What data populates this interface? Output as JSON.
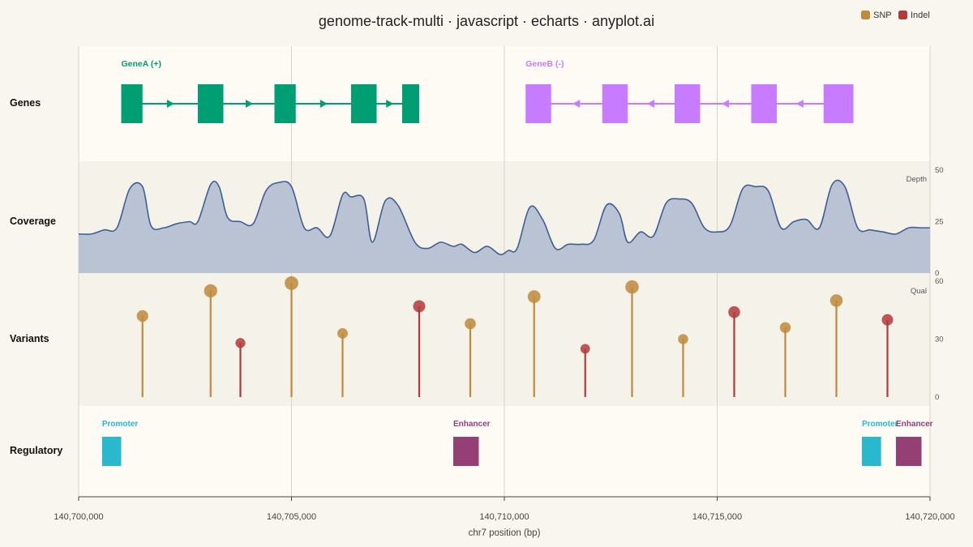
{
  "title": "genome-track-multi · javascript · echarts · anyplot.ai",
  "legend": [
    {
      "label": "SNP",
      "color": "#c08a3a"
    },
    {
      "label": "Indel",
      "color": "#b23a3a"
    }
  ],
  "tracks": [
    {
      "key": "genes",
      "label": "Genes"
    },
    {
      "key": "coverage",
      "label": "Coverage"
    },
    {
      "key": "variants",
      "label": "Variants"
    },
    {
      "key": "regulatory",
      "label": "Regulatory"
    }
  ],
  "chart_data": {
    "type": "genome-track",
    "x_axis": {
      "label": "chr7 position (bp)",
      "range": [
        140700000,
        140720000
      ],
      "ticks": [
        140700000,
        140705000,
        140710000,
        140715000,
        140720000
      ],
      "tick_labels": [
        "140,700,000",
        "140,705,000",
        "140,710,000",
        "140,715,000",
        "140,720,000"
      ]
    },
    "genes": [
      {
        "name": "GeneA (+)",
        "strand": "+",
        "color": "#009e73",
        "start": 140701000,
        "end": 140708000,
        "exons": [
          [
            140701000,
            140701500
          ],
          [
            140702800,
            140703400
          ],
          [
            140704600,
            140705100
          ],
          [
            140706400,
            140707000
          ],
          [
            140707600,
            140708000
          ]
        ]
      },
      {
        "name": "GeneB (-)",
        "strand": "-",
        "color": "#c77cff",
        "start": 140710500,
        "end": 140718200,
        "exons": [
          [
            140710500,
            140711100
          ],
          [
            140712300,
            140712900
          ],
          [
            140714000,
            140714600
          ],
          [
            140715800,
            140716400
          ],
          [
            140717500,
            140718200
          ]
        ]
      }
    ],
    "coverage": {
      "label": "Depth",
      "ylim": [
        0,
        50
      ],
      "ticks": [
        0,
        25,
        50
      ],
      "x": [
        140700000,
        140700300,
        140700600,
        140700900,
        140701200,
        140701500,
        140701700,
        140702000,
        140702300,
        140702600,
        140702800,
        140703100,
        140703300,
        140703500,
        140703800,
        140704100,
        140704400,
        140704700,
        140705000,
        140705300,
        140705600,
        140705900,
        140706200,
        140706400,
        140706700,
        140706900,
        140707200,
        140707500,
        140707900,
        140708200,
        140708500,
        140708800,
        140709000,
        140709300,
        140709600,
        140709900,
        140710100,
        140710300,
        140710600,
        140710900,
        140711200,
        140711500,
        140711800,
        140712100,
        140712400,
        140712700,
        140712900,
        140713200,
        140713500,
        140713800,
        140714100,
        140714400,
        140714700,
        140715000,
        140715300,
        140715600,
        140715900,
        140716200,
        140716500,
        140716800,
        140717100,
        140717400,
        140717700,
        140718000,
        140718300,
        140718600,
        140718900,
        140719200,
        140719500,
        140719800,
        140720000
      ],
      "values": [
        19,
        19,
        21,
        22,
        41,
        42,
        23,
        22,
        24,
        25,
        25,
        43,
        42,
        27,
        25,
        24,
        40,
        44,
        42,
        22,
        22,
        18,
        38,
        37,
        36,
        15,
        35,
        33,
        15,
        12,
        15,
        13,
        14,
        10,
        13,
        9,
        11,
        12,
        32,
        26,
        12,
        14,
        14,
        16,
        33,
        29,
        15,
        20,
        18,
        34,
        36,
        34,
        22,
        20,
        23,
        41,
        42,
        40,
        22,
        25,
        26,
        22,
        43,
        42,
        22,
        21,
        20,
        19,
        22,
        22,
        22
      ]
    },
    "variants": {
      "label": "Qual",
      "ylim": [
        0,
        60
      ],
      "ticks": [
        0,
        30,
        60
      ],
      "points": [
        {
          "pos": 140701500,
          "qual": 42,
          "type": "SNP"
        },
        {
          "pos": 140703100,
          "qual": 55,
          "type": "SNP"
        },
        {
          "pos": 140703800,
          "qual": 28,
          "type": "Indel"
        },
        {
          "pos": 140705000,
          "qual": 59,
          "type": "SNP"
        },
        {
          "pos": 140706200,
          "qual": 33,
          "type": "SNP"
        },
        {
          "pos": 140708000,
          "qual": 47,
          "type": "Indel"
        },
        {
          "pos": 140709200,
          "qual": 38,
          "type": "SNP"
        },
        {
          "pos": 140710700,
          "qual": 52,
          "type": "SNP"
        },
        {
          "pos": 140711900,
          "qual": 25,
          "type": "Indel"
        },
        {
          "pos": 140713000,
          "qual": 57,
          "type": "SNP"
        },
        {
          "pos": 140714200,
          "qual": 30,
          "type": "SNP"
        },
        {
          "pos": 140715400,
          "qual": 44,
          "type": "Indel"
        },
        {
          "pos": 140716600,
          "qual": 36,
          "type": "SNP"
        },
        {
          "pos": 140717800,
          "qual": 50,
          "type": "SNP"
        },
        {
          "pos": 140719000,
          "qual": 40,
          "type": "Indel"
        }
      ]
    },
    "regulatory": [
      {
        "name": "Promoter",
        "start": 140700550,
        "end": 140701000,
        "color": "#2ab8cc"
      },
      {
        "name": "Enhancer",
        "start": 140708800,
        "end": 140709400,
        "color": "#944075"
      },
      {
        "name": "Promoter",
        "start": 140718400,
        "end": 140718850,
        "color": "#2ab8cc"
      },
      {
        "name": "Enhancer",
        "start": 140719200,
        "end": 140719800,
        "color": "#944075"
      }
    ]
  }
}
